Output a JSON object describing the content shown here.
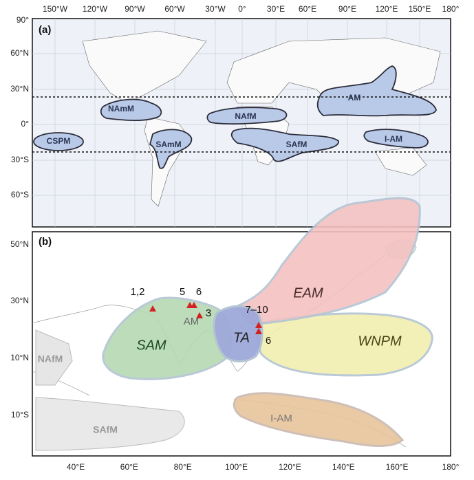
{
  "panel_a": {
    "label": "(a)",
    "lon_ticks": [
      "150°W",
      "120°W",
      "90°W",
      "60°W",
      "30°W",
      "0°",
      "30°E",
      "60°E",
      "90°E",
      "120°E",
      "150°E",
      "180°"
    ],
    "lat_ticks": [
      "90°",
      "60°N",
      "30°N",
      "0°",
      "30°S",
      "60°S"
    ],
    "regions": [
      "NAmM",
      "CSPM",
      "SAmM",
      "NAfM",
      "SAfM",
      "AM",
      "I-AM"
    ]
  },
  "panel_b": {
    "label": "(b)",
    "lat_ticks": [
      "50°N",
      "30°N",
      "10°N",
      "10°S"
    ],
    "lon_ticks": [
      "40°E",
      "60°E",
      "80°E",
      "100°E",
      "120°E",
      "140°E",
      "160°E",
      "180°"
    ],
    "regions": [
      "SAM",
      "AM",
      "TA",
      "EAM",
      "WNPM",
      "I-AM",
      "NAfM",
      "SAfM"
    ],
    "sites": [
      "1,2",
      "5",
      "6",
      "3",
      "7–10",
      "6"
    ]
  }
}
